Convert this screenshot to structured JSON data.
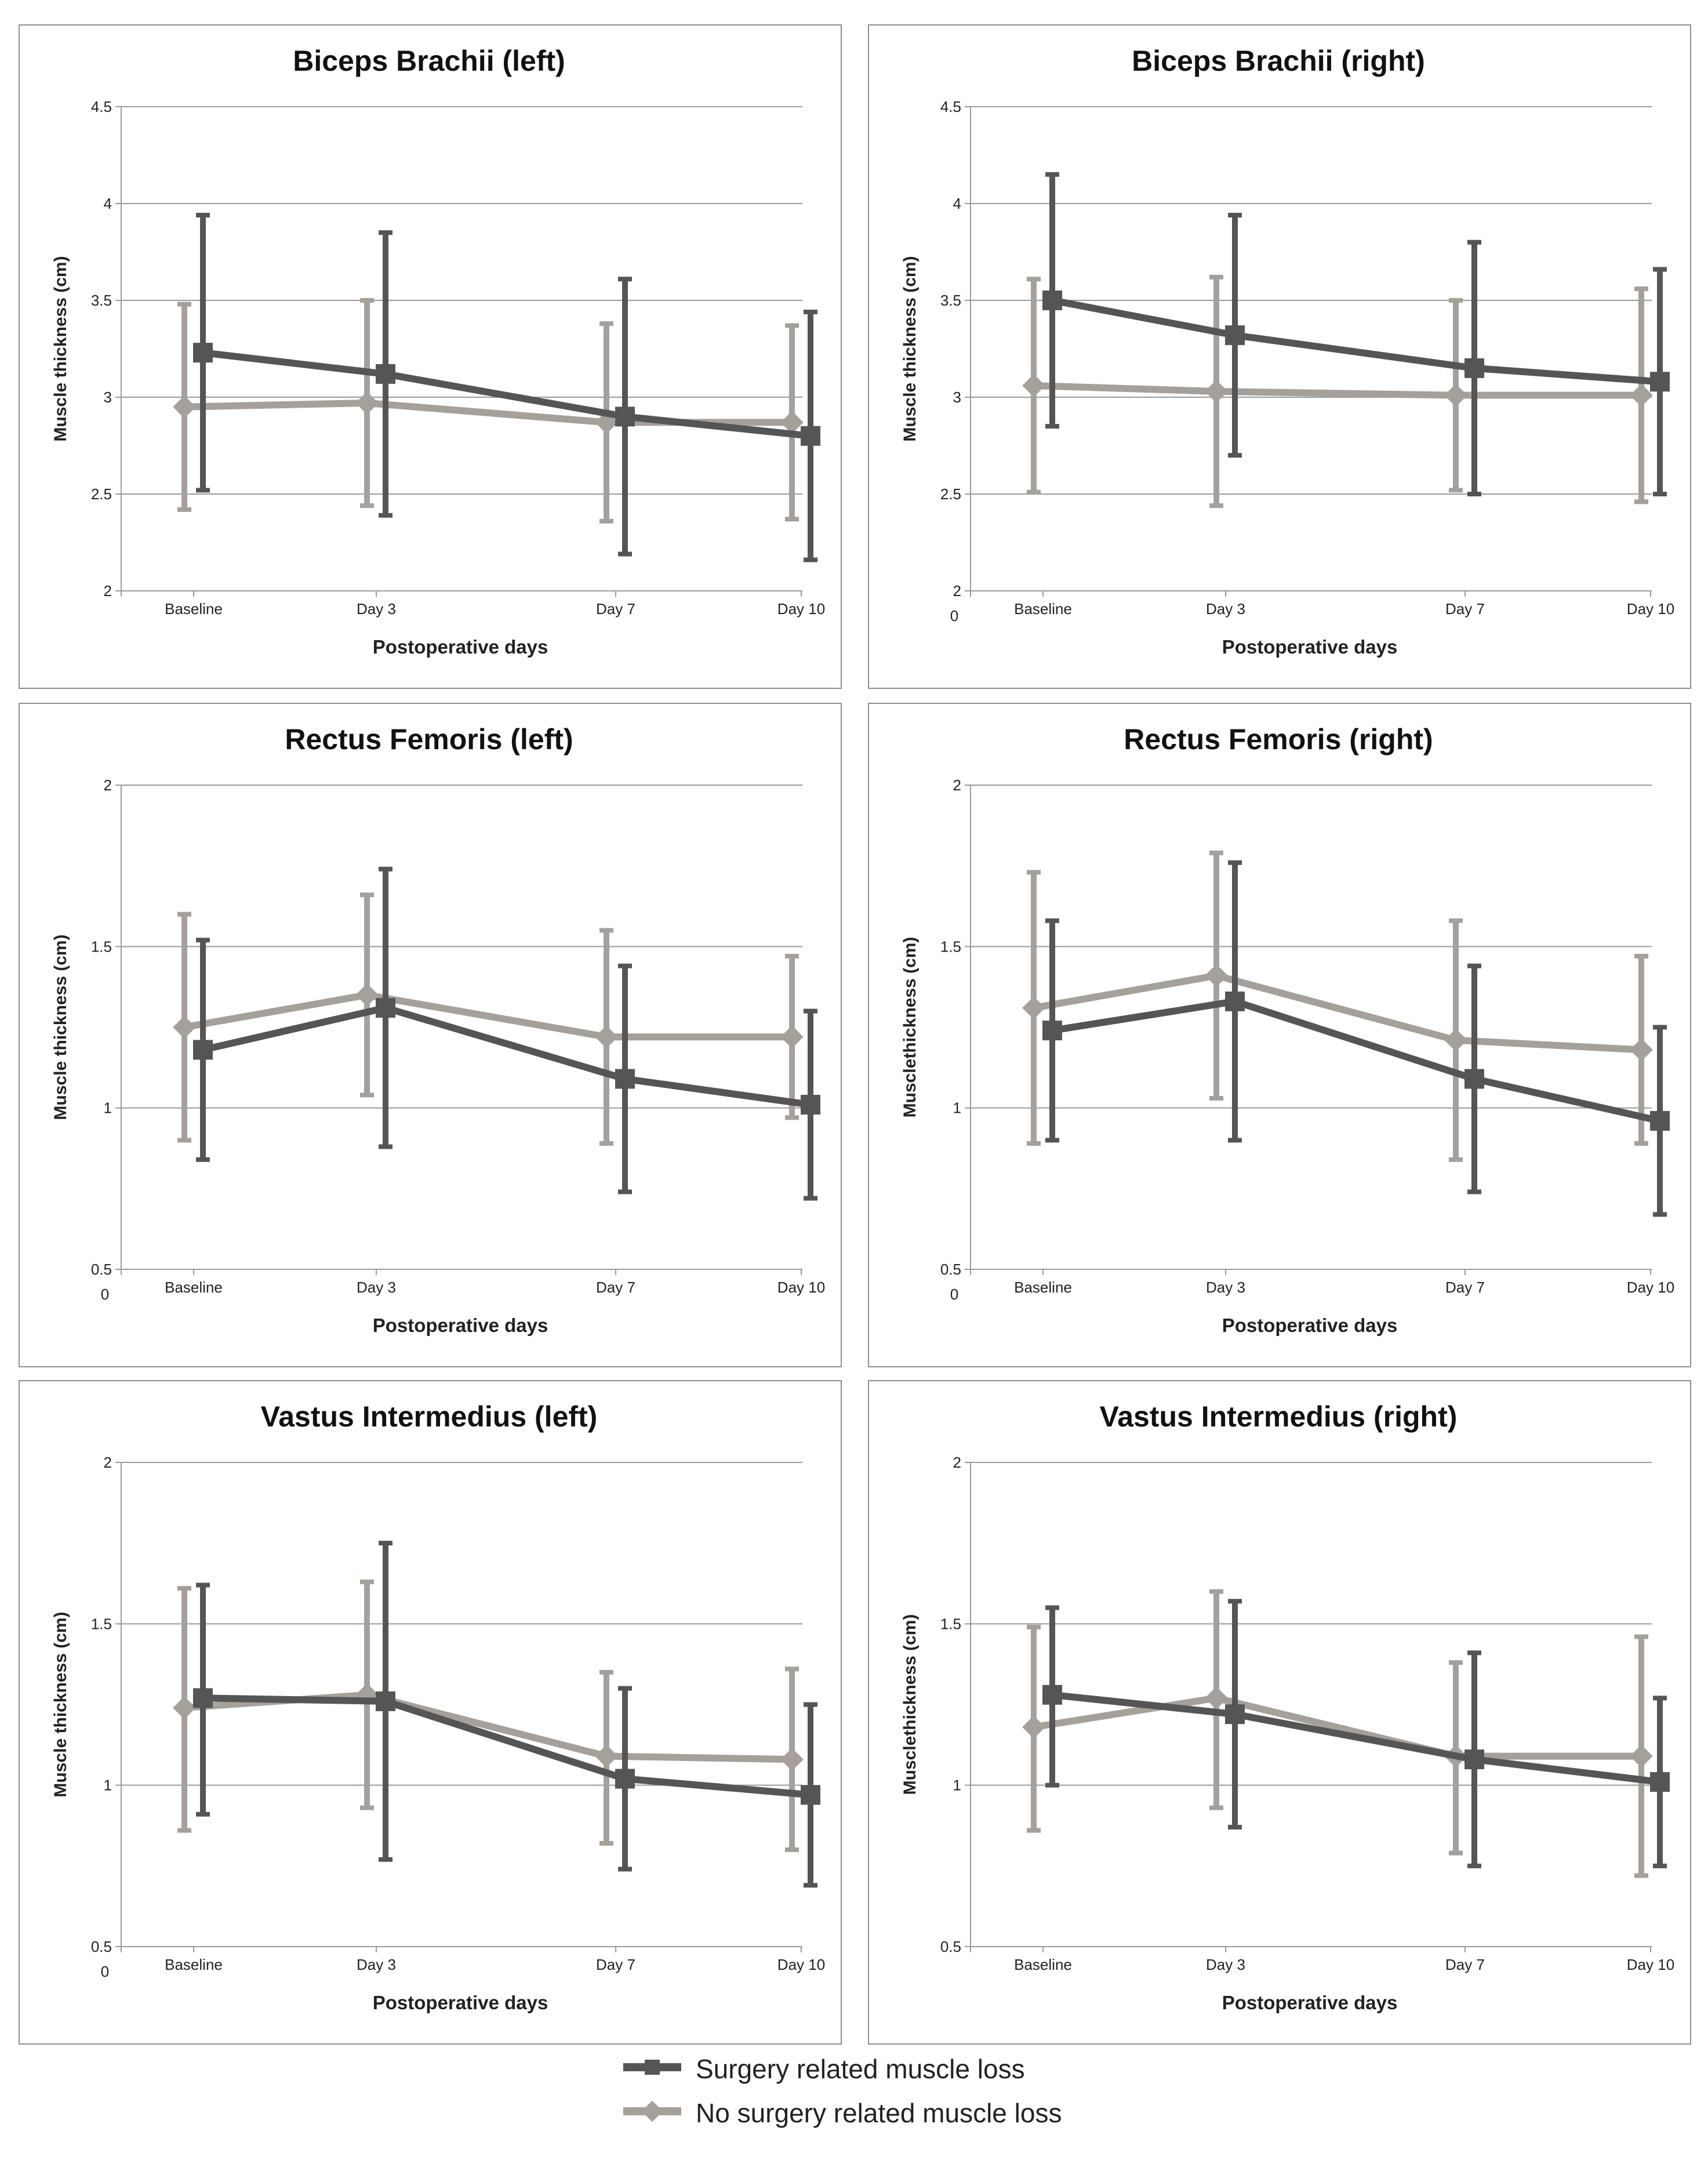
{
  "legend": {
    "surgery_label": "Surgery related muscle loss",
    "no_surgery_label": "No surgery related muscle loss"
  },
  "colors": {
    "surgery": "#555555",
    "no_surgery": "#a6a09a",
    "grid": "#9a9a9a"
  },
  "chart_data": [
    {
      "type": "line",
      "title": "Biceps Brachii (left)",
      "xlabel": "Postoperative days",
      "ylabel": "Muscle thickness (cm)",
      "categories": [
        "Baseline",
        "Day 3",
        "Day 7",
        "Day 10"
      ],
      "ylim": [
        2,
        4.5
      ],
      "yticks": [
        "2",
        "2.5",
        "3",
        "3.5",
        "4",
        "4.5"
      ],
      "zero_label": "",
      "series": [
        {
          "name": "Surgery related muscle loss",
          "values": [
            3.23,
            3.12,
            2.9,
            2.8
          ],
          "lower": [
            2.52,
            2.39,
            2.19,
            2.16
          ],
          "upper": [
            3.94,
            3.85,
            3.61,
            3.44
          ]
        },
        {
          "name": "No surgery related muscle loss",
          "values": [
            2.95,
            2.97,
            2.87,
            2.87
          ],
          "lower": [
            2.42,
            2.44,
            2.36,
            2.37
          ],
          "upper": [
            3.48,
            3.5,
            3.38,
            3.37
          ]
        }
      ]
    },
    {
      "type": "line",
      "title": "Biceps Brachii (right)",
      "xlabel": "Postoperative days",
      "ylabel": "Muscle thickness (cm)",
      "categories": [
        "Baseline",
        "Day 3",
        "Day 7",
        "Day 10"
      ],
      "ylim": [
        2,
        4.5
      ],
      "yticks": [
        "2",
        "2.5",
        "3",
        "3.5",
        "4",
        "4.5"
      ],
      "zero_label": "0",
      "series": [
        {
          "name": "Surgery related muscle loss",
          "values": [
            3.5,
            3.32,
            3.15,
            3.08
          ],
          "lower": [
            2.85,
            2.7,
            2.5,
            2.5
          ],
          "upper": [
            4.15,
            3.94,
            3.8,
            3.66
          ]
        },
        {
          "name": "No surgery related muscle loss",
          "values": [
            3.06,
            3.03,
            3.01,
            3.01
          ],
          "lower": [
            2.51,
            2.44,
            2.52,
            2.46
          ],
          "upper": [
            3.61,
            3.62,
            3.5,
            3.56
          ]
        }
      ]
    },
    {
      "type": "line",
      "title": "Rectus Femoris (left)",
      "xlabel": "Postoperative days",
      "ylabel": "Muscle thickness (cm)",
      "categories": [
        "Baseline",
        "Day 3",
        "Day 7",
        "Day 10"
      ],
      "ylim": [
        0.5,
        2
      ],
      "yticks": [
        "0.5",
        "1",
        "1.5",
        "2"
      ],
      "zero_label": "0",
      "series": [
        {
          "name": "Surgery related muscle loss",
          "values": [
            1.18,
            1.31,
            1.09,
            1.01
          ],
          "lower": [
            0.84,
            0.88,
            0.74,
            0.72
          ],
          "upper": [
            1.52,
            1.74,
            1.44,
            1.3
          ]
        },
        {
          "name": "No surgery related muscle loss",
          "values": [
            1.25,
            1.35,
            1.22,
            1.22
          ],
          "lower": [
            0.9,
            1.04,
            0.89,
            0.97
          ],
          "upper": [
            1.6,
            1.66,
            1.55,
            1.47
          ]
        }
      ]
    },
    {
      "type": "line",
      "title": "Rectus Femoris (right)",
      "xlabel": "Postoperative days",
      "ylabel": "Musclethickness (cm)",
      "categories": [
        "Baseline",
        "Day 3",
        "Day 7",
        "Day 10"
      ],
      "ylim": [
        0.5,
        2
      ],
      "yticks": [
        "0.5",
        "1",
        "1.5",
        "2"
      ],
      "zero_label": "0",
      "series": [
        {
          "name": "Surgery related muscle loss",
          "values": [
            1.24,
            1.33,
            1.09,
            0.96
          ],
          "lower": [
            0.9,
            0.9,
            0.74,
            0.67
          ],
          "upper": [
            1.58,
            1.76,
            1.44,
            1.25
          ]
        },
        {
          "name": "No surgery related muscle loss",
          "values": [
            1.31,
            1.41,
            1.21,
            1.18
          ],
          "lower": [
            0.89,
            1.03,
            0.84,
            0.89
          ],
          "upper": [
            1.73,
            1.79,
            1.58,
            1.47
          ]
        }
      ]
    },
    {
      "type": "line",
      "title": "Vastus Intermedius (left)",
      "xlabel": "Postoperative days",
      "ylabel": "Muscle thickness (cm)",
      "categories": [
        "Baseline",
        "Day 3",
        "Day 7",
        "Day 10"
      ],
      "ylim": [
        0.5,
        2
      ],
      "yticks": [
        "0.5",
        "1",
        "1.5",
        "2"
      ],
      "zero_label": "0",
      "series": [
        {
          "name": "Surgery related muscle loss",
          "values": [
            1.27,
            1.26,
            1.02,
            0.97
          ],
          "lower": [
            0.91,
            0.77,
            0.74,
            0.69
          ],
          "upper": [
            1.62,
            1.75,
            1.3,
            1.25
          ]
        },
        {
          "name": "No surgery related muscle loss",
          "values": [
            1.24,
            1.28,
            1.09,
            1.08
          ],
          "lower": [
            0.86,
            0.93,
            0.82,
            0.8
          ],
          "upper": [
            1.61,
            1.63,
            1.35,
            1.36
          ]
        }
      ]
    },
    {
      "type": "line",
      "title": "Vastus Intermedius (right)",
      "xlabel": "Postoperative days",
      "ylabel": "Musclethickness (cm)",
      "categories": [
        "Baseline",
        "Day 3",
        "Day 7",
        "Day 10"
      ],
      "ylim": [
        0.5,
        2
      ],
      "yticks": [
        "0.5",
        "1",
        "1.5",
        "2"
      ],
      "zero_label": "",
      "series": [
        {
          "name": "Surgery related muscle loss",
          "values": [
            1.28,
            1.22,
            1.08,
            1.01
          ],
          "lower": [
            1.0,
            0.87,
            0.75,
            0.75
          ],
          "upper": [
            1.55,
            1.57,
            1.41,
            1.27
          ]
        },
        {
          "name": "No surgery related muscle loss",
          "values": [
            1.18,
            1.27,
            1.09,
            1.09
          ],
          "lower": [
            0.86,
            0.93,
            0.79,
            0.72
          ],
          "upper": [
            1.49,
            1.6,
            1.38,
            1.46
          ]
        }
      ]
    }
  ]
}
